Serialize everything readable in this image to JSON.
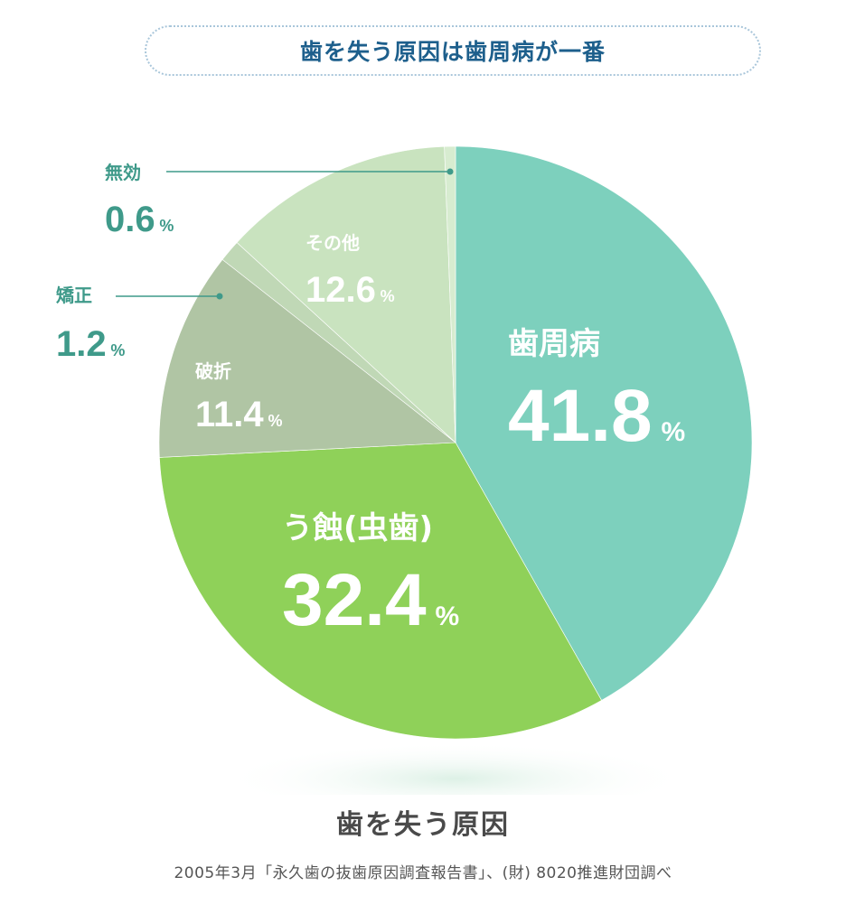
{
  "header": {
    "title": "歯を失う原因は歯周病が一番"
  },
  "chart_data": {
    "type": "pie",
    "title": "歯を失う原因",
    "unit": "%",
    "slices": [
      {
        "label": "歯周病",
        "value": 41.8,
        "color": "#7dd0bd"
      },
      {
        "label": "う蝕(虫歯)",
        "value": 32.4,
        "color": "#8fd159"
      },
      {
        "label": "破折",
        "value": 11.4,
        "color": "#b0c5a4"
      },
      {
        "label": "矯正",
        "value": 1.2,
        "color": "#c0d8b6"
      },
      {
        "label": "その他",
        "value": 12.6,
        "color": "#c9e3bf"
      },
      {
        "label": "無効",
        "value": 0.6,
        "color": "#d7ecd0"
      }
    ]
  },
  "footer": {
    "caption": "歯を失う原因",
    "source": "2005年3月「永久歯の抜歯原因調査報告書」、(財) 8020推進財団調べ"
  }
}
